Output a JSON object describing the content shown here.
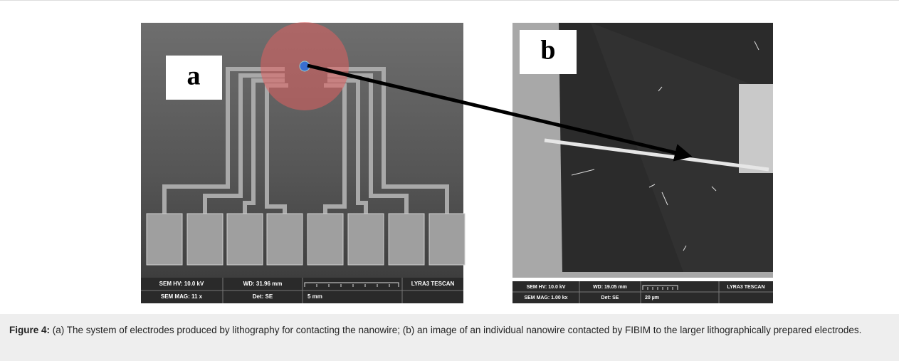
{
  "panels": [
    {
      "label": "a",
      "info": {
        "hv": "SEM HV: 10.0 kV",
        "wd": "WD: 31.96 mm",
        "mag": "SEM MAG: 11 x",
        "det": "Det: SE",
        "scale": "5 mm",
        "brand": "LYRA3 TESCAN"
      }
    },
    {
      "label": "b",
      "info": {
        "hv": "SEM HV: 10.0 kV",
        "wd": "WD: 19.05 mm",
        "mag": "SEM MAG: 1.00 kx",
        "det": "Det: SE",
        "scale": "20 µm",
        "brand": "LYRA3 TESCAN"
      }
    }
  ],
  "caption": {
    "label": "Figure 4:",
    "text": "(a) The system of electrodes produced by lithography for contacting the nanowire; (b) an image of an individual nanowire contacted by FIBIM to the larger lithographically prepared electrodes."
  }
}
